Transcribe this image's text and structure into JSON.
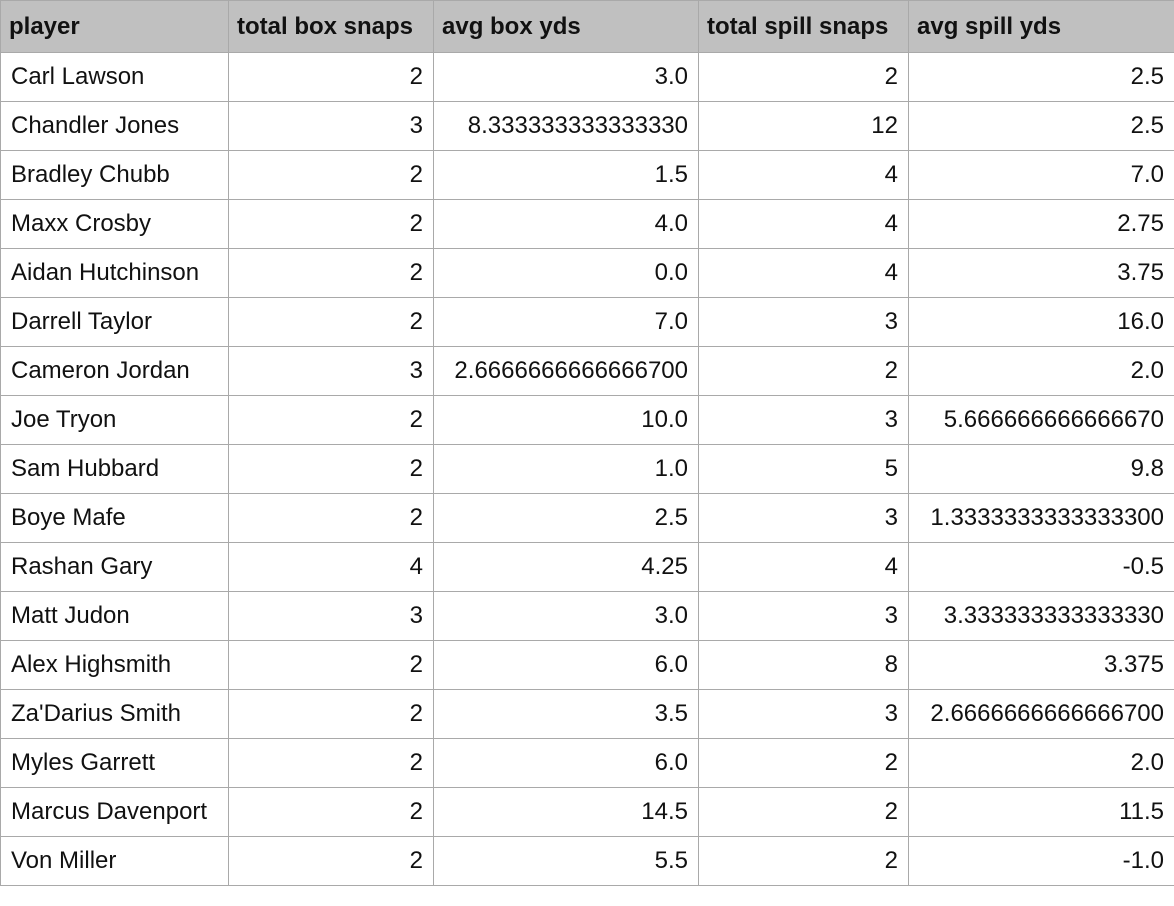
{
  "columns": [
    "player",
    "total box snaps",
    "avg box yds",
    "total spill snaps",
    "avg spill yds"
  ],
  "rows": [
    [
      "Carl Lawson",
      "2",
      "3.0",
      "2",
      "2.5"
    ],
    [
      "Chandler Jones",
      "3",
      "8.333333333333330",
      "12",
      "2.5"
    ],
    [
      "Bradley Chubb",
      "2",
      "1.5",
      "4",
      "7.0"
    ],
    [
      "Maxx Crosby",
      "2",
      "4.0",
      "4",
      "2.75"
    ],
    [
      "Aidan Hutchinson",
      "2",
      "0.0",
      "4",
      "3.75"
    ],
    [
      "Darrell Taylor",
      "2",
      "7.0",
      "3",
      "16.0"
    ],
    [
      "Cameron Jordan",
      "3",
      "2.6666666666666700",
      "2",
      "2.0"
    ],
    [
      "Joe Tryon",
      "2",
      "10.0",
      "3",
      "5.666666666666670"
    ],
    [
      "Sam Hubbard",
      "2",
      "1.0",
      "5",
      "9.8"
    ],
    [
      "Boye Mafe",
      "2",
      "2.5",
      "3",
      "1.3333333333333300"
    ],
    [
      "Rashan Gary",
      "4",
      "4.25",
      "4",
      "-0.5"
    ],
    [
      "Matt Judon",
      "3",
      "3.0",
      "3",
      "3.333333333333330"
    ],
    [
      "Alex Highsmith",
      "2",
      "6.0",
      "8",
      "3.375"
    ],
    [
      "Za'Darius Smith",
      "2",
      "3.5",
      "3",
      "2.6666666666666700"
    ],
    [
      "Myles Garrett",
      "2",
      "6.0",
      "2",
      "2.0"
    ],
    [
      "Marcus Davenport",
      "2",
      "14.5",
      "2",
      "11.5"
    ],
    [
      "Von Miller",
      "2",
      "5.5",
      "2",
      "-1.0"
    ]
  ]
}
